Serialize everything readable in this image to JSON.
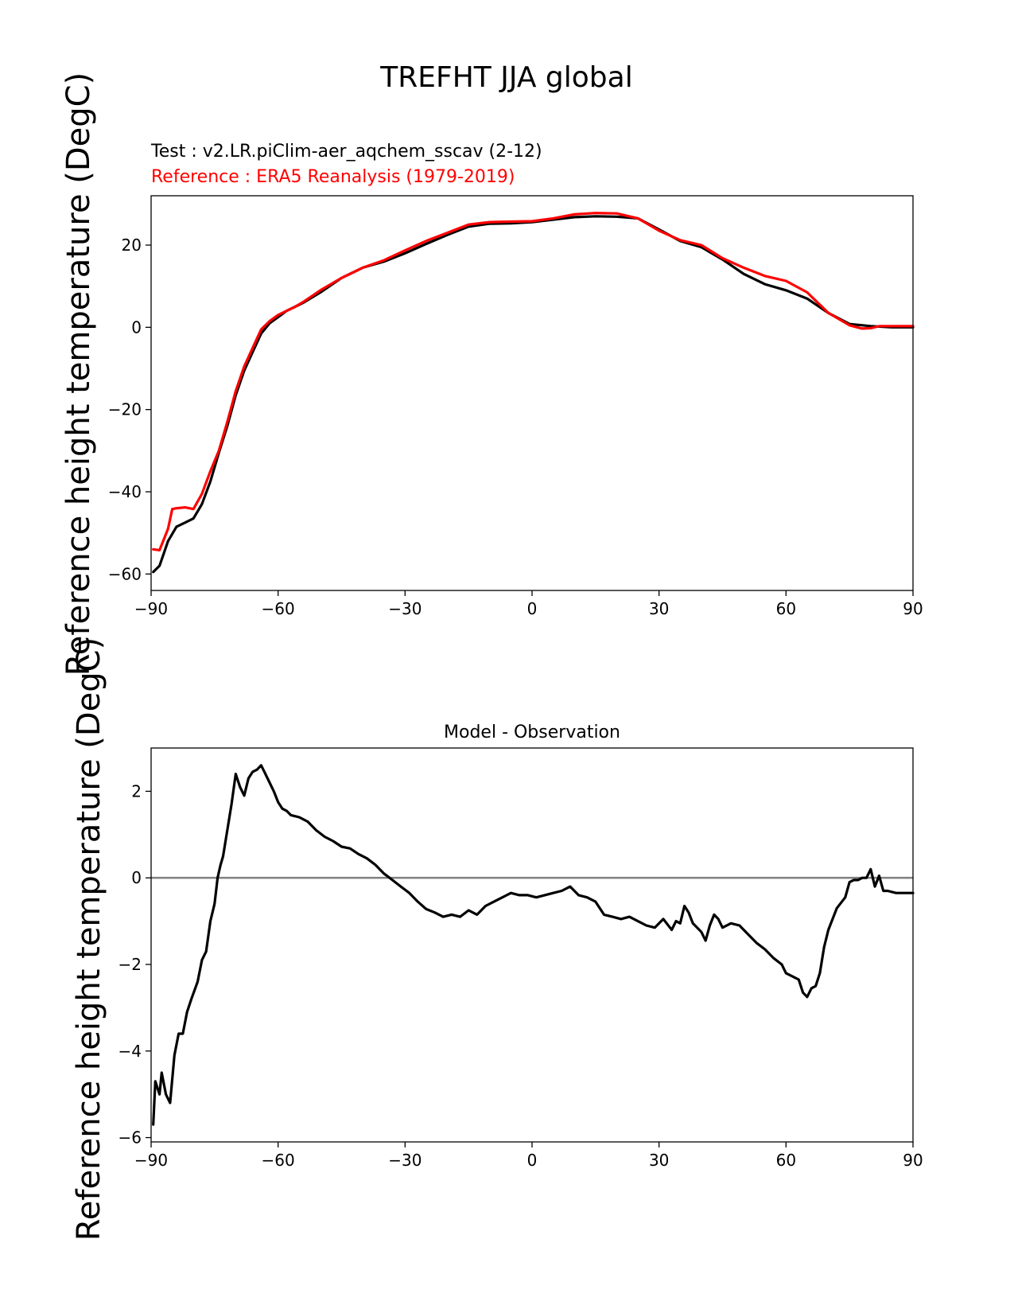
{
  "figure_title": "TREFHT JJA global",
  "chart_data": [
    {
      "type": "line",
      "name": "climatology",
      "title": "",
      "test_label": "Test : v2.LR.piClim-aer_aqchem_sscav (2-12)",
      "reference_label": "Reference : ERA5 Reanalysis (1979-2019)",
      "xlabel": "",
      "ylabel": "Reference height temperature (DegC)",
      "xlim": [
        -90,
        90
      ],
      "ylim": [
        -64,
        32
      ],
      "xticks": [
        -90,
        -60,
        -30,
        0,
        30,
        60,
        90
      ],
      "xtick_labels": [
        "−90",
        "−60",
        "−30",
        "0",
        "30",
        "60",
        "90"
      ],
      "yticks": [
        -60,
        -40,
        -20,
        0,
        20
      ],
      "ytick_labels": [
        "−60",
        "−40",
        "−20",
        "0",
        "20"
      ],
      "series": [
        {
          "name": "Test",
          "color": "#000000",
          "x": [
            -89.5,
            -88,
            -86,
            -84,
            -82,
            -80,
            -78,
            -76,
            -74,
            -72,
            -70,
            -68,
            -66,
            -64,
            -62,
            -60,
            -58,
            -56,
            -54,
            -50,
            -45,
            -40,
            -35,
            -30,
            -25,
            -20,
            -15,
            -10,
            -5,
            0,
            5,
            10,
            15,
            20,
            25,
            30,
            35,
            40,
            45,
            50,
            55,
            60,
            65,
            70,
            75,
            80,
            85,
            90
          ],
          "values": [
            -59.5,
            -58,
            -52,
            -48.5,
            -47.5,
            -46.5,
            -43,
            -37.5,
            -30.5,
            -24,
            -16.5,
            -10.5,
            -6,
            -1.5,
            1,
            2.5,
            4,
            5,
            6,
            8.5,
            12,
            14.5,
            16,
            18,
            20.3,
            22.5,
            24.5,
            25.2,
            25.3,
            25.6,
            26.2,
            26.8,
            27,
            26.9,
            26.5,
            23.8,
            21,
            19.5,
            16.5,
            13,
            10.5,
            9,
            7,
            3.5,
            0.8,
            0.3,
            0.0,
            0.0
          ]
        },
        {
          "name": "Reference",
          "color": "#ff0000",
          "x": [
            -89.5,
            -88,
            -86,
            -85,
            -84,
            -82,
            -80,
            -78,
            -76,
            -74,
            -72,
            -70,
            -68,
            -66,
            -64,
            -62,
            -60,
            -58,
            -56,
            -54,
            -50,
            -45,
            -40,
            -35,
            -30,
            -25,
            -20,
            -15,
            -10,
            -5,
            0,
            5,
            10,
            15,
            20,
            25,
            30,
            35,
            40,
            45,
            50,
            55,
            60,
            65,
            70,
            75,
            78,
            80,
            82,
            85,
            90
          ],
          "values": [
            -54,
            -54.2,
            -49,
            -44.2,
            -44,
            -43.8,
            -44.2,
            -40.5,
            -35,
            -30,
            -23,
            -15.5,
            -9.5,
            -5,
            -0.5,
            1.5,
            3,
            4,
            5,
            6.2,
            9,
            12,
            14.5,
            16.3,
            18.7,
            21,
            23,
            25,
            25.6,
            25.7,
            25.8,
            26.5,
            27.5,
            27.8,
            27.7,
            26.5,
            23.5,
            21.2,
            20,
            16.8,
            14.5,
            12.5,
            11.3,
            8.5,
            3.5,
            0.5,
            -0.3,
            -0.2,
            0.3,
            0.3,
            0.3
          ]
        }
      ]
    },
    {
      "type": "line",
      "name": "difference",
      "title": "Model - Observation",
      "xlabel": "",
      "ylabel": "Reference height temperature (DegC)",
      "xlim": [
        -90,
        90
      ],
      "ylim": [
        -6.1,
        3.0
      ],
      "xticks": [
        -90,
        -60,
        -30,
        0,
        30,
        60,
        90
      ],
      "xtick_labels": [
        "−90",
        "−60",
        "−30",
        "0",
        "30",
        "60",
        "90"
      ],
      "yticks": [
        -6,
        -4,
        -2,
        0,
        2
      ],
      "ytick_labels": [
        "−6",
        "−4",
        "−2",
        "0",
        "2"
      ],
      "zero_line_color": "#808080",
      "series": [
        {
          "name": "Model - Observation",
          "color": "#000000",
          "x": [
            -89.5,
            -89,
            -88,
            -87.5,
            -86.5,
            -85.5,
            -84.5,
            -83.5,
            -82.5,
            -81.5,
            -80.5,
            -79,
            -78,
            -77,
            -76,
            -75,
            -74.3,
            -73.6,
            -73,
            -72,
            -71,
            -70,
            -69,
            -68,
            -67,
            -66,
            -65,
            -64,
            -63,
            -62,
            -61,
            -60,
            -59,
            -58,
            -57,
            -55,
            -53,
            -51,
            -49,
            -47,
            -45,
            -43,
            -41,
            -39,
            -37,
            -35,
            -33,
            -31,
            -29,
            -27,
            -25,
            -23,
            -21,
            -19,
            -17,
            -15,
            -13,
            -11,
            -9,
            -7,
            -5,
            -3,
            -1,
            1,
            3,
            5,
            7,
            9,
            10,
            11,
            13,
            15,
            17,
            19,
            21,
            23,
            25,
            27,
            29,
            31,
            33,
            34,
            35,
            36,
            37,
            38,
            39,
            40,
            41,
            42,
            43,
            44,
            45,
            47,
            49,
            51,
            53,
            55,
            57,
            59,
            60,
            62,
            63,
            64,
            65,
            66,
            67,
            68,
            69,
            70,
            72,
            74,
            75,
            76,
            77,
            78,
            79,
            80,
            81,
            82,
            83,
            84,
            86,
            88,
            90
          ],
          "values": [
            -5.7,
            -4.7,
            -5.0,
            -4.5,
            -5.0,
            -5.2,
            -4.1,
            -3.6,
            -3.6,
            -3.1,
            -2.8,
            -2.4,
            -1.9,
            -1.7,
            -1.0,
            -0.6,
            0.0,
            0.3,
            0.5,
            1.1,
            1.7,
            2.4,
            2.1,
            1.9,
            2.3,
            2.45,
            2.5,
            2.6,
            2.4,
            2.2,
            2.0,
            1.75,
            1.6,
            1.55,
            1.45,
            1.4,
            1.3,
            1.1,
            0.95,
            0.85,
            0.72,
            0.68,
            0.55,
            0.45,
            0.3,
            0.1,
            -0.05,
            -0.2,
            -0.35,
            -0.55,
            -0.72,
            -0.8,
            -0.9,
            -0.85,
            -0.9,
            -0.75,
            -0.85,
            -0.65,
            -0.55,
            -0.45,
            -0.35,
            -0.4,
            -0.4,
            -0.45,
            -0.4,
            -0.35,
            -0.3,
            -0.2,
            -0.3,
            -0.4,
            -0.45,
            -0.55,
            -0.85,
            -0.9,
            -0.95,
            -0.9,
            -1.0,
            -1.1,
            -1.15,
            -0.95,
            -1.2,
            -1.0,
            -1.05,
            -0.65,
            -0.8,
            -1.05,
            -1.15,
            -1.25,
            -1.45,
            -1.1,
            -0.85,
            -0.95,
            -1.15,
            -1.05,
            -1.1,
            -1.3,
            -1.5,
            -1.65,
            -1.85,
            -2.0,
            -2.2,
            -2.3,
            -2.35,
            -2.65,
            -2.75,
            -2.55,
            -2.5,
            -2.2,
            -1.6,
            -1.2,
            -0.7,
            -0.45,
            -0.1,
            -0.05,
            -0.05,
            0.0,
            0.0,
            0.2,
            -0.2,
            0.05,
            -0.3,
            -0.3,
            -0.35,
            -0.35,
            -0.35
          ]
        }
      ]
    }
  ]
}
